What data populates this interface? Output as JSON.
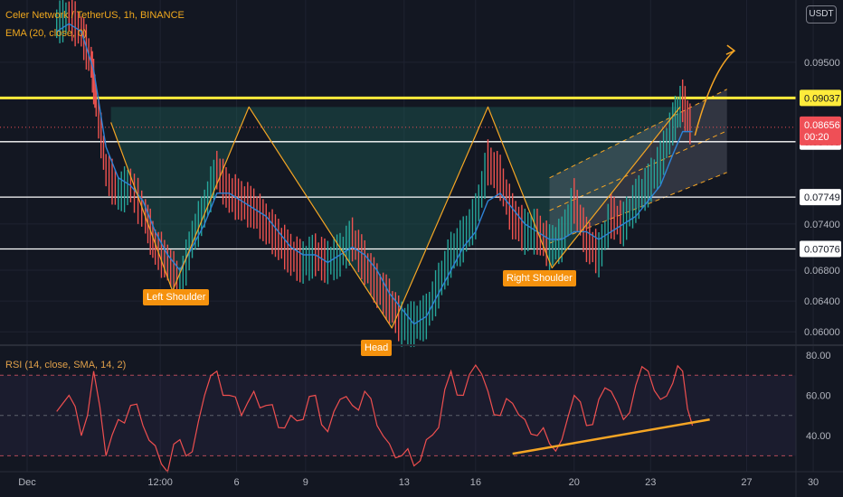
{
  "header": {
    "symbol_line": "Celer Network / TetherUS, 1h, BINANCE",
    "ema_line": "EMA (20, close, 0)",
    "rsi_line": "RSI (14, close, SMA, 14, 2)",
    "currency_button": "USDT"
  },
  "annotations": {
    "left_shoulder": "Left Shoulder",
    "head": "Head",
    "right_shoulder": "Right Shoulder"
  },
  "colors": {
    "background": "#131722",
    "grid": "#1f2331",
    "candle_up": "#26a69a",
    "candle_down": "#ef5350",
    "ema": "#2e83d6",
    "pattern": "#f5a524",
    "resistance": "#ffeb3b",
    "level": "#ffffff",
    "rsi": "#ef4f4f",
    "price_tag": "#ef4f56"
  },
  "chart_data": [
    {
      "type": "line",
      "title": "Celer Network / TetherUS, 1h, BINANCE",
      "description_series": "Price with EMA(20)",
      "x_ticks": [
        "Dec",
        "12:00",
        "6",
        "9",
        "13",
        "16",
        "20",
        "23",
        "27",
        "30"
      ],
      "y_ticks": [
        0.06,
        0.064,
        0.068,
        0.074,
        0.095
      ],
      "y_tick_labels": [
        "0.06000",
        "0.06400",
        "0.06800",
        "0.07400",
        "0.09500"
      ],
      "ylim": [
        0.0585,
        0.1025
      ],
      "horizontal_levels": [
        {
          "value": 0.09037,
          "label": "0.09037",
          "color": "#ffeb3b"
        },
        {
          "value": 0.08469,
          "label": "0.08469",
          "color": "#ffffff"
        },
        {
          "value": 0.07749,
          "label": "0.07749",
          "color": "#ffffff"
        },
        {
          "value": 0.07076,
          "label": "0.07076",
          "color": "#ffffff"
        }
      ],
      "last_price": {
        "value": 0.08656,
        "label": "0.08656",
        "countdown": "00:20"
      },
      "series": [
        {
          "name": "Price",
          "x": [
            0,
            0.5,
            1,
            1.4,
            1.6,
            2,
            2.5,
            3,
            3.6,
            4,
            4.5,
            5,
            5.5,
            6,
            6.5,
            7,
            7.5,
            8,
            8.5,
            9,
            9.5,
            10,
            10.5,
            11,
            11.5,
            12,
            12.5,
            13,
            13.5,
            14,
            14.5,
            15,
            15.5,
            16,
            16.5,
            17,
            17.5,
            18,
            18.5,
            19,
            19.5,
            20,
            20.5,
            21,
            21.5,
            22,
            22.5,
            23,
            23.5,
            24,
            24.5,
            25,
            25.4,
            25.8
          ],
          "values": [
            0.1,
            0.101,
            0.099,
            0.095,
            0.09,
            0.081,
            0.078,
            0.079,
            0.075,
            0.071,
            0.069,
            0.066,
            0.072,
            0.076,
            0.081,
            0.078,
            0.077,
            0.076,
            0.074,
            0.072,
            0.07,
            0.069,
            0.07,
            0.069,
            0.07,
            0.072,
            0.069,
            0.066,
            0.064,
            0.061,
            0.061,
            0.062,
            0.066,
            0.07,
            0.072,
            0.075,
            0.082,
            0.08,
            0.075,
            0.073,
            0.073,
            0.071,
            0.072,
            0.077,
            0.072,
            0.07,
            0.075,
            0.074,
            0.077,
            0.079,
            0.082,
            0.087,
            0.09,
            0.086
          ]
        },
        {
          "name": "EMA (20, close, 0)",
          "x": [
            0,
            0.5,
            1,
            1.5,
            2,
            2.5,
            3,
            3.5,
            4,
            4.5,
            5,
            5.5,
            6,
            6.5,
            7,
            7.5,
            8,
            8.5,
            9,
            9.5,
            10,
            10.5,
            11,
            11.5,
            12,
            12.5,
            13,
            13.5,
            14,
            14.5,
            15,
            15.5,
            16,
            16.5,
            17,
            17.5,
            18,
            18.5,
            19,
            19.5,
            20,
            20.5,
            21,
            21.5,
            22,
            22.5,
            23,
            23.5,
            24,
            24.5,
            25,
            25.4,
            25.8
          ],
          "values": [
            0.099,
            0.1,
            0.099,
            0.094,
            0.084,
            0.08,
            0.079,
            0.077,
            0.073,
            0.07,
            0.068,
            0.071,
            0.074,
            0.078,
            0.078,
            0.077,
            0.076,
            0.075,
            0.073,
            0.071,
            0.07,
            0.07,
            0.069,
            0.07,
            0.071,
            0.07,
            0.068,
            0.065,
            0.063,
            0.061,
            0.062,
            0.065,
            0.068,
            0.071,
            0.073,
            0.077,
            0.078,
            0.076,
            0.074,
            0.073,
            0.072,
            0.072,
            0.073,
            0.073,
            0.072,
            0.073,
            0.074,
            0.075,
            0.077,
            0.079,
            0.083,
            0.086,
            0.086
          ]
        },
        {
          "name": "Pattern",
          "x": [
            2.2,
            4.7,
            7.8,
            13.6,
            17.5,
            20.1,
            25.3
          ],
          "values": [
            0.0872,
            0.0653,
            0.0892,
            0.0605,
            0.0892,
            0.0683,
            0.0892
          ]
        }
      ],
      "annotations": [
        "Left Shoulder",
        "Head",
        "Right Shoulder"
      ],
      "grid": true
    },
    {
      "type": "line",
      "title": "RSI (14, close, SMA, 14, 2)",
      "x_ticks": [
        "Dec",
        "12:00",
        "6",
        "9",
        "13",
        "16",
        "20",
        "23",
        "27",
        "30"
      ],
      "y_ticks": [
        40,
        60,
        80
      ],
      "y_tick_labels": [
        "40.00",
        "60.00",
        "80.00"
      ],
      "ylim": [
        23,
        84
      ],
      "bands": [
        30,
        50,
        70
      ],
      "series": [
        {
          "name": "RSI",
          "x": [
            0,
            0.5,
            1,
            1.5,
            2,
            2.5,
            3,
            3.5,
            4,
            4.5,
            5,
            5.5,
            6,
            6.5,
            7,
            7.5,
            8,
            8.5,
            9,
            9.5,
            10,
            10.5,
            11,
            11.5,
            12,
            12.5,
            13,
            13.5,
            14,
            14.5,
            15,
            15.5,
            16,
            16.5,
            17,
            17.5,
            18,
            18.5,
            19,
            19.5,
            20,
            20.5,
            21,
            21.5,
            22,
            22.5,
            23,
            23.5,
            24,
            24.5,
            25,
            25.4,
            25.8
          ],
          "values": [
            52,
            60,
            40,
            72,
            30,
            48,
            55,
            45,
            35,
            22,
            38,
            32,
            60,
            72,
            60,
            50,
            62,
            55,
            44,
            50,
            48,
            60,
            42,
            58,
            55,
            62,
            45,
            36,
            30,
            25,
            38,
            44,
            72,
            60,
            75,
            62,
            50,
            56,
            48,
            40,
            36,
            38,
            60,
            45,
            58,
            62,
            48,
            65,
            72,
            58,
            66,
            72,
            45
          ]
        },
        {
          "name": "Trend",
          "x": [
            18.5,
            26.5
          ],
          "values": [
            31,
            48
          ]
        }
      ],
      "grid": true
    }
  ]
}
